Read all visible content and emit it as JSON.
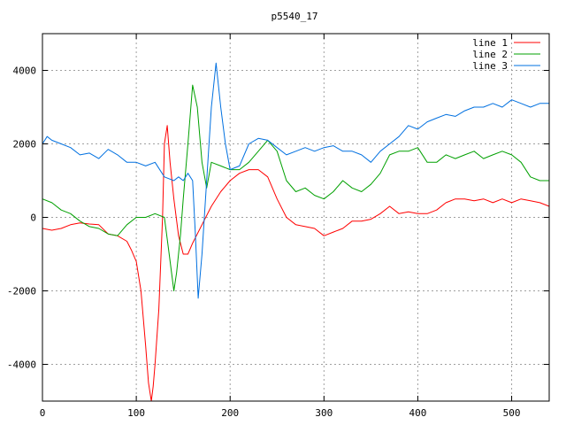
{
  "chart_data": {
    "type": "line",
    "title": "p5540_17",
    "xlabel": "",
    "ylabel": "",
    "xlim": [
      0,
      540
    ],
    "ylim": [
      -5000,
      5000
    ],
    "x_ticks": [
      0,
      100,
      200,
      300,
      400,
      500
    ],
    "y_ticks": [
      -4000,
      -2000,
      0,
      2000,
      4000
    ],
    "grid": true,
    "legend_position": "top-right",
    "series": [
      {
        "name": "line 1",
        "color": "#ff0000",
        "x": [
          0,
          10,
          20,
          30,
          40,
          50,
          60,
          70,
          80,
          90,
          95,
          100,
          105,
          110,
          113,
          116,
          118,
          120,
          124,
          128,
          130,
          133,
          136,
          140,
          145,
          150,
          155,
          160,
          170,
          180,
          190,
          200,
          210,
          220,
          230,
          240,
          250,
          260,
          270,
          280,
          290,
          300,
          310,
          320,
          330,
          340,
          350,
          360,
          370,
          380,
          390,
          400,
          410,
          420,
          430,
          440,
          450,
          460,
          470,
          480,
          490,
          500,
          510,
          520,
          530,
          540
        ],
        "y": [
          -300,
          -350,
          -300,
          -200,
          -150,
          -180,
          -200,
          -450,
          -500,
          -650,
          -900,
          -1200,
          -2000,
          -3500,
          -4500,
          -5000,
          -4600,
          -4000,
          -2500,
          0,
          2000,
          2500,
          1500,
          500,
          -500,
          -1000,
          -1000,
          -700,
          -200,
          300,
          700,
          1000,
          1200,
          1300,
          1300,
          1100,
          500,
          0,
          -200,
          -250,
          -300,
          -500,
          -400,
          -300,
          -100,
          -100,
          -50,
          100,
          300,
          100,
          150,
          100,
          100,
          200,
          400,
          500,
          500,
          450,
          500,
          400,
          500,
          400,
          500,
          450,
          400,
          300
        ]
      },
      {
        "name": "line 2",
        "color": "#00a000",
        "x": [
          0,
          10,
          20,
          30,
          40,
          50,
          60,
          70,
          80,
          90,
          100,
          110,
          120,
          130,
          135,
          140,
          143,
          147,
          150,
          155,
          160,
          165,
          170,
          175,
          180,
          190,
          200,
          210,
          220,
          230,
          240,
          250,
          260,
          270,
          280,
          290,
          300,
          310,
          320,
          330,
          340,
          350,
          360,
          370,
          380,
          390,
          400,
          410,
          420,
          430,
          440,
          450,
          460,
          470,
          480,
          490,
          500,
          510,
          520,
          530,
          540
        ],
        "y": [
          500,
          400,
          200,
          100,
          -100,
          -250,
          -300,
          -450,
          -500,
          -200,
          0,
          0,
          100,
          0,
          -1000,
          -2000,
          -1500,
          -500,
          500,
          2000,
          3600,
          3000,
          1500,
          800,
          1500,
          1400,
          1300,
          1300,
          1500,
          1800,
          2100,
          1800,
          1000,
          700,
          800,
          600,
          500,
          700,
          1000,
          800,
          700,
          900,
          1200,
          1700,
          1800,
          1800,
          1900,
          1500,
          1500,
          1700,
          1600,
          1700,
          1800,
          1600,
          1700,
          1800,
          1700,
          1500,
          1100,
          1000,
          1000
        ]
      },
      {
        "name": "line 3",
        "color": "#0070e0",
        "x": [
          0,
          5,
          10,
          20,
          30,
          40,
          50,
          60,
          70,
          80,
          90,
          100,
          110,
          120,
          130,
          140,
          145,
          150,
          155,
          160,
          163,
          166,
          170,
          175,
          180,
          185,
          190,
          195,
          200,
          210,
          220,
          230,
          240,
          250,
          260,
          270,
          280,
          290,
          300,
          310,
          320,
          330,
          340,
          350,
          360,
          370,
          380,
          390,
          400,
          410,
          420,
          430,
          440,
          450,
          460,
          470,
          480,
          490,
          500,
          510,
          520,
          530,
          540
        ],
        "y": [
          2000,
          2200,
          2100,
          2000,
          1900,
          1700,
          1750,
          1600,
          1850,
          1700,
          1500,
          1500,
          1400,
          1500,
          1100,
          1000,
          1100,
          1000,
          1200,
          1000,
          -500,
          -2200,
          -1000,
          1000,
          3000,
          4200,
          3000,
          2000,
          1300,
          1400,
          2000,
          2150,
          2100,
          1900,
          1700,
          1800,
          1900,
          1800,
          1900,
          1950,
          1800,
          1800,
          1700,
          1500,
          1800,
          2000,
          2200,
          2500,
          2400,
          2600,
          2700,
          2800,
          2750,
          2900,
          3000,
          3000,
          3100,
          3000,
          3200,
          3100,
          3000,
          3100,
          3100
        ]
      }
    ]
  }
}
